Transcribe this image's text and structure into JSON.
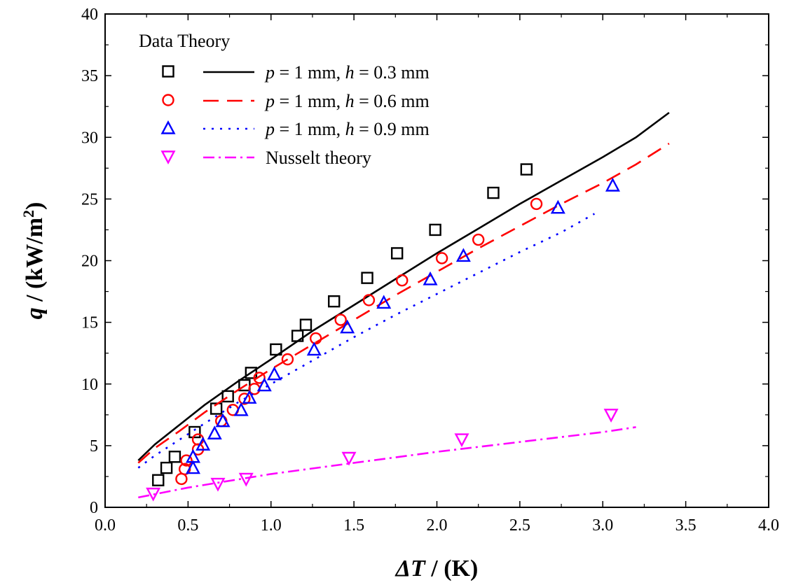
{
  "chart_data": {
    "type": "scatter",
    "xlabel_var": "ΔT",
    "xlabel_unit": " / (K)",
    "ylabel_var": "q",
    "ylabel_unit_pre": " / (kW/m",
    "ylabel_unit_sup": "2",
    "ylabel_unit_post": ")",
    "xlim": [
      0.0,
      4.0
    ],
    "ylim": [
      0,
      40
    ],
    "xticks": [
      "0.0",
      "0.5",
      "1.0",
      "1.5",
      "2.0",
      "2.5",
      "3.0",
      "3.5",
      "4.0"
    ],
    "yticks": [
      "0",
      "5",
      "10",
      "15",
      "20",
      "25",
      "30",
      "35",
      "40"
    ],
    "grid": false,
    "legend_position": "top-left",
    "legend_header": [
      "Data",
      "Theory"
    ],
    "legend_entries": [
      {
        "parts": [
          {
            "t": "p",
            "i": true
          },
          {
            "t": " = 1 mm, "
          },
          {
            "t": "h",
            "i": true
          },
          {
            "t": " = 0.3 mm"
          }
        ]
      },
      {
        "parts": [
          {
            "t": "p",
            "i": true
          },
          {
            "t": " = 1 mm, "
          },
          {
            "t": "h",
            "i": true
          },
          {
            "t": " = 0.6 mm"
          }
        ]
      },
      {
        "parts": [
          {
            "t": "p",
            "i": true
          },
          {
            "t": " = 1 mm, "
          },
          {
            "t": "h",
            "i": true
          },
          {
            "t": " = 0.9 mm"
          }
        ]
      },
      {
        "parts": [
          {
            "t": "Nusselt theory"
          }
        ]
      }
    ],
    "series": [
      {
        "color": "#000000",
        "marker": "square",
        "dash": "solid",
        "points": [
          [
            0.32,
            2.2
          ],
          [
            0.37,
            3.2
          ],
          [
            0.42,
            4.1
          ],
          [
            0.54,
            6.1
          ],
          [
            0.67,
            8.0
          ],
          [
            0.74,
            9.0
          ],
          [
            0.84,
            9.9
          ],
          [
            0.88,
            10.9
          ],
          [
            1.03,
            12.8
          ],
          [
            1.16,
            13.9
          ],
          [
            1.21,
            14.8
          ],
          [
            1.38,
            16.7
          ],
          [
            1.58,
            18.6
          ],
          [
            1.76,
            20.6
          ],
          [
            1.99,
            22.5
          ],
          [
            2.34,
            25.5
          ],
          [
            2.54,
            27.4
          ]
        ],
        "theory": [
          [
            0.2,
            3.8
          ],
          [
            0.3,
            5.1
          ],
          [
            0.45,
            6.7
          ],
          [
            0.6,
            8.3
          ],
          [
            0.8,
            10.2
          ],
          [
            1.0,
            12.0
          ],
          [
            1.25,
            14.3
          ],
          [
            1.5,
            16.4
          ],
          [
            1.75,
            18.5
          ],
          [
            2.0,
            20.6
          ],
          [
            2.25,
            22.6
          ],
          [
            2.5,
            24.6
          ],
          [
            2.75,
            26.5
          ],
          [
            3.0,
            28.4
          ],
          [
            3.2,
            30.0
          ],
          [
            3.4,
            32.0
          ]
        ]
      },
      {
        "color": "#ff0000",
        "marker": "circle",
        "dash": "dashed",
        "points": [
          [
            0.46,
            2.3
          ],
          [
            0.48,
            3.1
          ],
          [
            0.49,
            3.8
          ],
          [
            0.56,
            4.7
          ],
          [
            0.56,
            5.5
          ],
          [
            0.7,
            7.0
          ],
          [
            0.77,
            7.9
          ],
          [
            0.84,
            8.8
          ],
          [
            0.9,
            9.6
          ],
          [
            0.93,
            10.5
          ],
          [
            1.1,
            12.0
          ],
          [
            1.27,
            13.7
          ],
          [
            1.42,
            15.2
          ],
          [
            1.59,
            16.8
          ],
          [
            1.79,
            18.4
          ],
          [
            2.03,
            20.2
          ],
          [
            2.25,
            21.7
          ],
          [
            2.6,
            24.6
          ]
        ],
        "theory": [
          [
            0.2,
            3.6
          ],
          [
            0.3,
            4.8
          ],
          [
            0.45,
            6.2
          ],
          [
            0.6,
            7.7
          ],
          [
            0.8,
            9.5
          ],
          [
            1.0,
            11.2
          ],
          [
            1.25,
            13.2
          ],
          [
            1.5,
            15.2
          ],
          [
            1.75,
            17.2
          ],
          [
            2.0,
            19.1
          ],
          [
            2.25,
            21.0
          ],
          [
            2.5,
            22.8
          ],
          [
            2.75,
            24.6
          ],
          [
            3.0,
            26.3
          ],
          [
            3.2,
            27.8
          ],
          [
            3.4,
            29.5
          ]
        ]
      },
      {
        "color": "#0000ff",
        "marker": "triangle-up",
        "dash": "dotted",
        "points": [
          [
            0.53,
            3.2
          ],
          [
            0.53,
            4.1
          ],
          [
            0.59,
            5.1
          ],
          [
            0.66,
            6.0
          ],
          [
            0.71,
            7.0
          ],
          [
            0.82,
            7.9
          ],
          [
            0.87,
            8.9
          ],
          [
            0.96,
            9.9
          ],
          [
            1.02,
            10.8
          ],
          [
            1.26,
            12.8
          ],
          [
            1.46,
            14.6
          ],
          [
            1.68,
            16.6
          ],
          [
            1.96,
            18.5
          ],
          [
            2.16,
            20.4
          ],
          [
            2.73,
            24.3
          ],
          [
            3.06,
            26.1
          ]
        ],
        "theory": [
          [
            0.2,
            3.2
          ],
          [
            0.3,
            4.2
          ],
          [
            0.45,
            5.5
          ],
          [
            0.6,
            6.8
          ],
          [
            0.8,
            8.5
          ],
          [
            1.0,
            10.0
          ],
          [
            1.25,
            11.9
          ],
          [
            1.5,
            13.8
          ],
          [
            1.75,
            15.6
          ],
          [
            2.0,
            17.3
          ],
          [
            2.25,
            19.0
          ],
          [
            2.5,
            20.7
          ],
          [
            2.75,
            22.3
          ],
          [
            2.95,
            23.8
          ]
        ]
      },
      {
        "color": "#ff00ff",
        "marker": "triangle-down",
        "dash": "dashdot",
        "points": [
          [
            0.29,
            1.1
          ],
          [
            0.68,
            1.9
          ],
          [
            0.85,
            2.3
          ],
          [
            1.47,
            4.0
          ],
          [
            2.15,
            5.5
          ],
          [
            3.05,
            7.5
          ]
        ],
        "theory": [
          [
            0.2,
            0.8
          ],
          [
            0.5,
            1.6
          ],
          [
            1.0,
            2.7
          ],
          [
            1.5,
            3.6
          ],
          [
            2.0,
            4.5
          ],
          [
            2.5,
            5.3
          ],
          [
            3.0,
            6.1
          ],
          [
            3.2,
            6.5
          ]
        ]
      }
    ]
  }
}
